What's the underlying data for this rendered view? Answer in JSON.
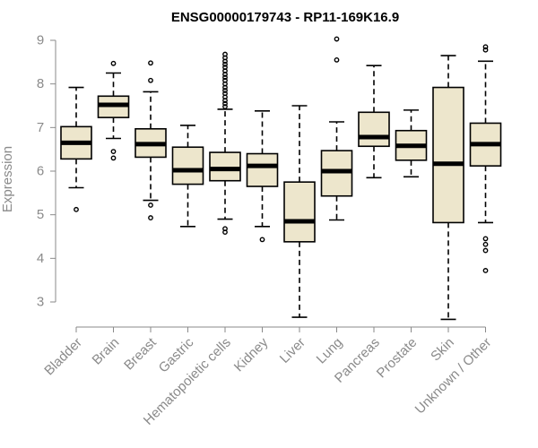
{
  "chart_data": {
    "type": "box",
    "title": "ENSG00000179743 - RP11-169K16.9",
    "xlabel": "",
    "ylabel": "Expression",
    "ylim": [
      2.6,
      9.2
    ],
    "yticks": [
      3,
      4,
      5,
      6,
      7,
      8,
      9
    ],
    "box_fill": "#ede6cc",
    "box_stroke": "#000000",
    "axis_color": "#8a8a8a",
    "categories": [
      "Bladder",
      "Brain",
      "Breast",
      "Gastric",
      "Hematopoietic cells",
      "Kidney",
      "Liver",
      "Lung",
      "Pancreas",
      "Prostate",
      "Skin",
      "Unknown / Other"
    ],
    "boxes": [
      {
        "name": "Bladder",
        "whisker_low": 5.62,
        "q1": 6.28,
        "median": 6.65,
        "q3": 7.02,
        "whisker_high": 7.92,
        "outliers": [
          5.12
        ]
      },
      {
        "name": "Brain",
        "whisker_low": 6.75,
        "q1": 7.23,
        "median": 7.52,
        "q3": 7.72,
        "whisker_high": 8.25,
        "outliers": [
          8.47,
          6.45,
          6.3
        ]
      },
      {
        "name": "Breast",
        "whisker_low": 5.33,
        "q1": 6.32,
        "median": 6.62,
        "q3": 6.97,
        "whisker_high": 7.82,
        "outliers": [
          8.48,
          8.08,
          5.22,
          4.93
        ]
      },
      {
        "name": "Gastric",
        "whisker_low": 4.73,
        "q1": 5.7,
        "median": 6.02,
        "q3": 6.55,
        "whisker_high": 7.05,
        "outliers": []
      },
      {
        "name": "Hematopoietic cells",
        "whisker_low": 4.9,
        "q1": 5.78,
        "median": 6.05,
        "q3": 6.43,
        "whisker_high": 7.42,
        "outliers": [
          8.68,
          8.6,
          8.52,
          8.45,
          8.38,
          8.3,
          8.22,
          8.15,
          8.08,
          8.0,
          7.92,
          7.85,
          7.78,
          7.7,
          7.62,
          7.55,
          7.48,
          4.68,
          4.6
        ]
      },
      {
        "name": "Kidney",
        "whisker_low": 4.73,
        "q1": 5.65,
        "median": 6.12,
        "q3": 6.4,
        "whisker_high": 7.38,
        "outliers": [
          4.43
        ]
      },
      {
        "name": "Liver",
        "whisker_low": 2.65,
        "q1": 4.38,
        "median": 4.85,
        "q3": 5.75,
        "whisker_high": 7.5,
        "outliers": []
      },
      {
        "name": "Lung",
        "whisker_low": 4.88,
        "q1": 5.43,
        "median": 6.0,
        "q3": 6.47,
        "whisker_high": 7.13,
        "outliers": [
          9.03,
          8.55
        ]
      },
      {
        "name": "Pancreas",
        "whisker_low": 5.85,
        "q1": 6.57,
        "median": 6.78,
        "q3": 7.35,
        "whisker_high": 8.42,
        "outliers": []
      },
      {
        "name": "Prostate",
        "whisker_low": 5.87,
        "q1": 6.25,
        "median": 6.58,
        "q3": 6.93,
        "whisker_high": 7.4,
        "outliers": []
      },
      {
        "name": "Skin",
        "whisker_low": 2.6,
        "q1": 4.82,
        "median": 6.17,
        "q3": 7.92,
        "whisker_high": 8.65,
        "outliers": []
      },
      {
        "name": "Unknown / Other",
        "whisker_low": 4.82,
        "q1": 6.12,
        "median": 6.62,
        "q3": 7.1,
        "whisker_high": 8.52,
        "outliers": [
          8.85,
          8.78,
          4.45,
          4.32,
          4.18,
          3.72
        ]
      }
    ]
  }
}
